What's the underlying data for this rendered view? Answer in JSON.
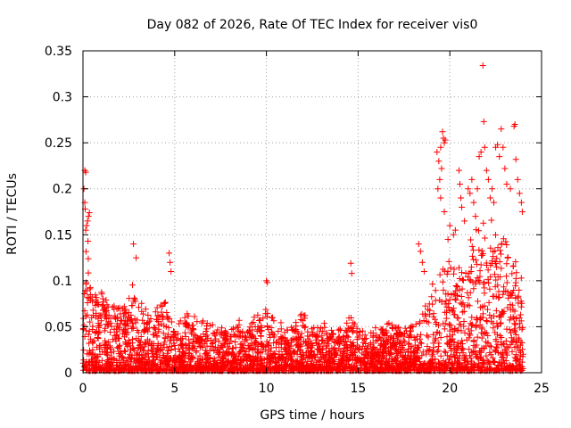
{
  "chart_data": {
    "type": "scatter",
    "title": "Day 082 of 2026, Rate Of TEC Index for receiver vis0",
    "xlabel": "GPS time / hours",
    "ylabel": "ROTI / TECUs",
    "xlim": [
      0,
      25
    ],
    "ylim": [
      0,
      0.35
    ],
    "xticks": [
      "0",
      "5",
      "10",
      "15",
      "20",
      "25"
    ],
    "yticks": [
      "0",
      "0.05",
      "0.1",
      "0.15",
      "0.2",
      "0.25",
      "0.3",
      "0.35"
    ],
    "grid": true,
    "marker": "+",
    "color": "#ff0000",
    "envelope": {
      "x": [
        0.0,
        0.2,
        0.5,
        1.0,
        1.5,
        2.0,
        2.5,
        2.8,
        3.2,
        3.7,
        4.2,
        4.7,
        5.0,
        5.5,
        6.0,
        6.5,
        7.0,
        7.5,
        8.0,
        8.5,
        9.0,
        9.5,
        10.0,
        10.5,
        11.0,
        11.5,
        12.0,
        12.5,
        13.0,
        13.5,
        14.0,
        14.5,
        15.0,
        15.5,
        16.0,
        16.5,
        17.0,
        17.5,
        18.0,
        18.5,
        19.0,
        19.5,
        20.0,
        20.5,
        21.0,
        21.5,
        22.0,
        22.5,
        23.0,
        23.5,
        24.0
      ],
      "y": [
        0.06,
        0.15,
        0.09,
        0.08,
        0.07,
        0.075,
        0.07,
        0.09,
        0.07,
        0.055,
        0.065,
        0.075,
        0.05,
        0.055,
        0.06,
        0.05,
        0.05,
        0.045,
        0.045,
        0.06,
        0.065,
        0.055,
        0.075,
        0.05,
        0.045,
        0.05,
        0.06,
        0.05,
        0.05,
        0.04,
        0.045,
        0.055,
        0.05,
        0.04,
        0.045,
        0.05,
        0.05,
        0.045,
        0.055,
        0.07,
        0.085,
        0.1,
        0.11,
        0.11,
        0.12,
        0.14,
        0.15,
        0.15,
        0.14,
        0.13,
        0.1
      ]
    },
    "points": [
      [
        0.1,
        0.22
      ],
      [
        0.15,
        0.218
      ],
      [
        0.05,
        0.2
      ],
      [
        0.1,
        0.185
      ],
      [
        0.12,
        0.178
      ],
      [
        0.3,
        0.17
      ],
      [
        0.25,
        0.165
      ],
      [
        0.15,
        0.155
      ],
      [
        0.2,
        0.16
      ],
      [
        0.35,
        0.174
      ],
      [
        2.75,
        0.14
      ],
      [
        2.9,
        0.125
      ],
      [
        4.7,
        0.13
      ],
      [
        4.75,
        0.12
      ],
      [
        4.8,
        0.11
      ],
      [
        10.0,
        0.1
      ],
      [
        10.05,
        0.098
      ],
      [
        14.6,
        0.119
      ],
      [
        14.65,
        0.108
      ],
      [
        18.3,
        0.14
      ],
      [
        18.4,
        0.132
      ],
      [
        18.5,
        0.12
      ],
      [
        18.6,
        0.11
      ],
      [
        19.6,
        0.262
      ],
      [
        19.65,
        0.255
      ],
      [
        19.7,
        0.25
      ],
      [
        19.75,
        0.253
      ],
      [
        19.5,
        0.245
      ],
      [
        19.4,
        0.23
      ],
      [
        19.3,
        0.24
      ],
      [
        19.55,
        0.222
      ],
      [
        19.45,
        0.21
      ],
      [
        19.35,
        0.2
      ],
      [
        19.5,
        0.19
      ],
      [
        19.7,
        0.175
      ],
      [
        20.5,
        0.22
      ],
      [
        20.55,
        0.205
      ],
      [
        20.6,
        0.19
      ],
      [
        20.65,
        0.18
      ],
      [
        21.0,
        0.2
      ],
      [
        21.2,
        0.21
      ],
      [
        21.1,
        0.195
      ],
      [
        21.3,
        0.185
      ],
      [
        21.5,
        0.2
      ],
      [
        21.6,
        0.235
      ],
      [
        21.7,
        0.24
      ],
      [
        21.8,
        0.334
      ],
      [
        21.85,
        0.273
      ],
      [
        21.9,
        0.245
      ],
      [
        22.0,
        0.22
      ],
      [
        22.1,
        0.21
      ],
      [
        22.3,
        0.2
      ],
      [
        22.5,
        0.245
      ],
      [
        22.6,
        0.248
      ],
      [
        22.7,
        0.235
      ],
      [
        22.8,
        0.265
      ],
      [
        22.9,
        0.245
      ],
      [
        23.0,
        0.222
      ],
      [
        23.1,
        0.205
      ],
      [
        23.3,
        0.2
      ],
      [
        23.5,
        0.268
      ],
      [
        23.55,
        0.27
      ],
      [
        23.6,
        0.232
      ],
      [
        23.7,
        0.21
      ],
      [
        23.8,
        0.195
      ],
      [
        23.9,
        0.185
      ],
      [
        23.95,
        0.175
      ],
      [
        22.2,
        0.19
      ],
      [
        22.4,
        0.185
      ],
      [
        21.4,
        0.17
      ],
      [
        20.8,
        0.165
      ],
      [
        20.0,
        0.16
      ],
      [
        20.2,
        0.15
      ],
      [
        19.9,
        0.145
      ],
      [
        20.3,
        0.155
      ]
    ]
  }
}
